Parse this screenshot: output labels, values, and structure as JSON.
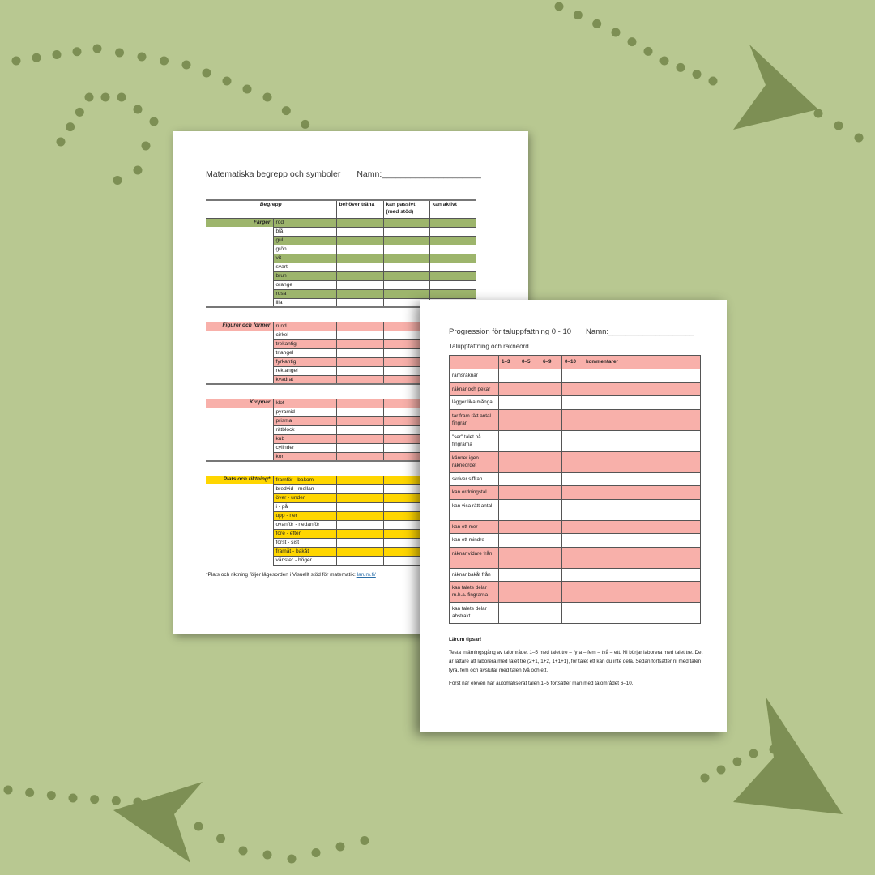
{
  "colors": {
    "background": "#b8c891",
    "decoration": "#7d8f54",
    "green_row": "#9db56c",
    "pink_row": "#f8b0aa",
    "yellow_row": "#ffd600"
  },
  "sheet1": {
    "title": "Matematiska begrepp och symboler",
    "name_label": "Namn:_____________________",
    "headers": [
      "Begrepp",
      "behöver träna",
      "kan passivt (med stöd)",
      "kan aktivt"
    ],
    "groups": [
      {
        "label": "Färger",
        "color": "green",
        "items": [
          "röd",
          "blå",
          "gul",
          "grön",
          "vit",
          "svart",
          "brun",
          "orange",
          "rosa",
          "lila"
        ]
      },
      {
        "label": "Figurer och former",
        "color": "pink",
        "items": [
          "rund",
          "cirkel",
          "trekantig",
          "triangel",
          "fyrkantig",
          "rektangel",
          "kvadrat"
        ]
      },
      {
        "label": "Kroppar",
        "color": "pink",
        "items": [
          "klot",
          "pyramid",
          "prisma",
          "rätblock",
          "kub",
          "cylinder",
          "kon"
        ]
      },
      {
        "label": "Plats och riktning*",
        "color": "yellow",
        "items": [
          "framför - bakom",
          "bredvid - mellan",
          "över - under",
          "i - på",
          "upp - ner",
          "ovanför - nedanför",
          "före - efter",
          "först - sist",
          "framåt - bakåt",
          "vänster - höger"
        ]
      }
    ],
    "footnote": "*Plats och riktning följer lägesorden i Visuellt stöd för matematik: ",
    "footnote_link": "larum.fi/"
  },
  "sheet2": {
    "title": "Progression för taluppfattning 0 - 10",
    "name_label": "Namn:____________________",
    "subtitle": "Taluppfattning och räkneord",
    "headers": [
      "",
      "1–3",
      "0–5",
      "6–9",
      "0–10",
      "kommentarer"
    ],
    "rows": [
      "ramsräknar",
      "räknar och pekar",
      "lägger lika många",
      "tar fram rätt antal fingrar",
      "\"ser\" talet på fingrarna",
      "känner igen räkneordet",
      "skriver siffran",
      "kan ordningstal",
      "kan visa rätt antal",
      "kan ett mer",
      "kan ett mindre",
      "räknar vidare från",
      "räknar bakåt från",
      "kan talets delar m.h.a. fingrarna",
      "kan talets delar abstrakt"
    ],
    "tips_title": "Lärum tipsar!",
    "tips": [
      "Testa inlärningsgång av talområdet 1–5 med talet tre – fyra – fem – två – ett. Ni börjar laborera med talet tre. Det är lättare att laborera med talet tre (2+1, 1+2, 1+1+1), för talet ett kan du inte dela. Sedan fortsätter ni med talen fyra, fem och avslutar med talen två och ett.",
      "Först när eleven har automatiserat talen 1–5 fortsätter man med talområdet 6–10."
    ]
  }
}
